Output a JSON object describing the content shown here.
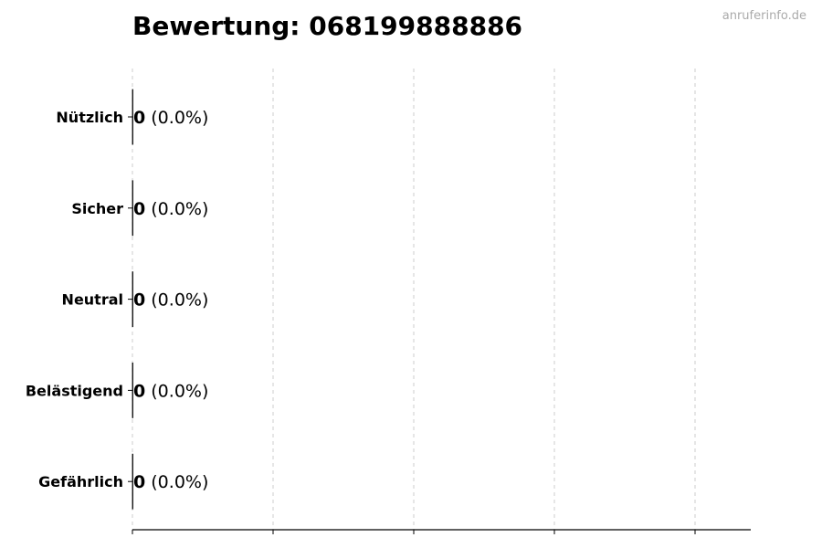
{
  "watermark": "anruferinfo.de",
  "chart_data": {
    "type": "bar",
    "orientation": "horizontal",
    "title": "Bewertung: 068199888886",
    "categories": [
      "Nützlich",
      "Sicher",
      "Neutral",
      "Belästigend",
      "Gefährlich"
    ],
    "values": [
      0,
      0,
      0,
      0,
      0
    ],
    "value_labels": [
      "0",
      "0",
      "0",
      "0",
      "0"
    ],
    "percent_labels": [
      "(0.0%)",
      "(0.0%)",
      "(0.0%)",
      "(0.0%)",
      "(0.0%)"
    ],
    "xlabel": "",
    "ylabel": "",
    "x_tick_count": 5,
    "x_tick_labels_shown": false,
    "grid": "vertical dashed",
    "bar_edge_color": "#000000",
    "grid_color": "#cccccc"
  }
}
